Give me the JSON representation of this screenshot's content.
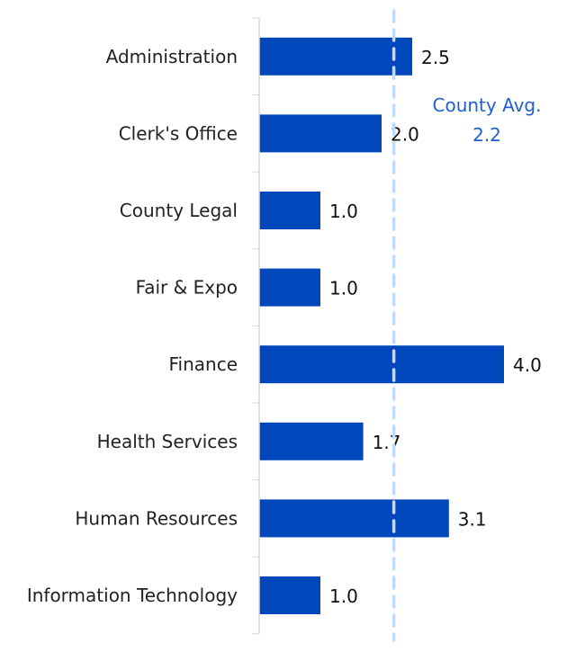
{
  "chart_data": {
    "type": "bar",
    "orientation": "horizontal",
    "categories": [
      "Administration",
      "Clerk's Office",
      "County Legal",
      "Fair & Expo",
      "Finance",
      "Health Services",
      "Human Resources",
      "Information Technology"
    ],
    "values": [
      2.5,
      2.0,
      1.0,
      1.0,
      4.0,
      1.7,
      3.1,
      1.0
    ],
    "data_labels": [
      "2.5",
      "2.0",
      "1.0",
      "1.0",
      "4.0",
      "1.7",
      "3.1",
      "1.0"
    ],
    "xlim": [
      0,
      4.0
    ],
    "grid": false,
    "reference_line": {
      "value": 2.2,
      "label_line1": "County Avg.",
      "label_line2": "2.2",
      "style": "dashed"
    },
    "colors": {
      "bar": "#0047BB",
      "reference_line": "#C2D9FF",
      "reference_label": "#1F5FD0",
      "axis": "#D9D9D9"
    }
  }
}
